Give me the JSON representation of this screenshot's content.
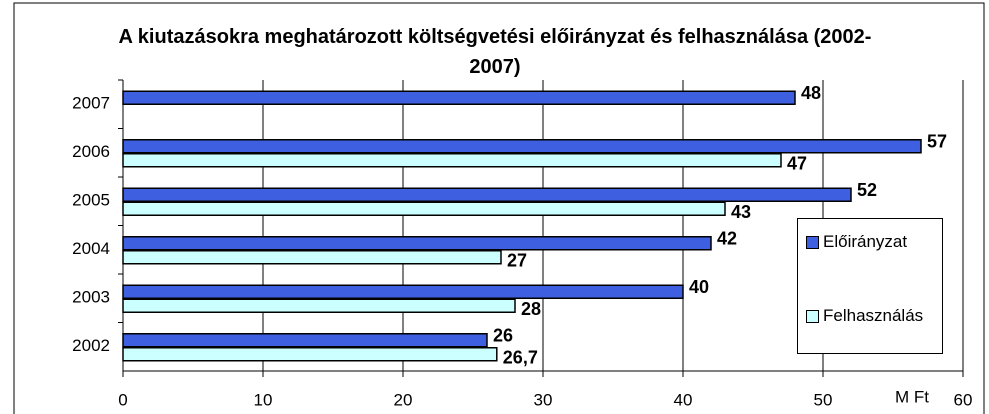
{
  "chart_data": {
    "type": "bar",
    "orientation": "horizontal",
    "title": "A kiutazásokra meghatározott költségvetési előirányzat és felhasználása (2002-2007)",
    "x_axis_label": "M Ft",
    "categories": [
      "2007",
      "2006",
      "2005",
      "2004",
      "2003",
      "2002"
    ],
    "series": [
      {
        "name": "Előirányzat",
        "color": "#3d5fe0",
        "values": [
          48,
          57,
          52,
          42,
          40,
          26
        ]
      },
      {
        "name": "Felhasználás",
        "color": "#ccffff",
        "values": [
          null,
          47,
          43,
          27,
          28,
          26.7
        ],
        "value_labels": [
          null,
          "47",
          "43",
          "27",
          "28",
          "26,7"
        ]
      }
    ],
    "xlim": [
      0,
      60
    ],
    "xticks": [
      0,
      10,
      20,
      30,
      40,
      50,
      60
    ],
    "grid": true
  }
}
